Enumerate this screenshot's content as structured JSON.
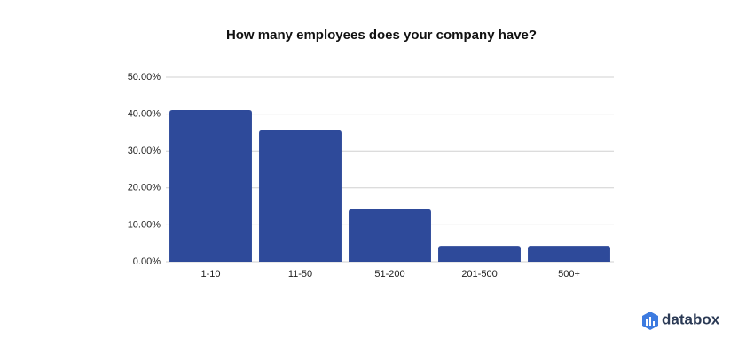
{
  "chart_data": {
    "type": "bar",
    "title": "How many employees does your company have?",
    "categories": [
      "1-10",
      "11-50",
      "51-200",
      "201-500",
      "500+"
    ],
    "values": [
      41.1,
      35.6,
      14.2,
      4.3,
      4.3
    ],
    "color": "#2e4a9a",
    "ylim": [
      0,
      50
    ],
    "yticks": [
      {
        "value": 0,
        "label": "0.00%"
      },
      {
        "value": 10,
        "label": "10.00%"
      },
      {
        "value": 20,
        "label": "20.00%"
      },
      {
        "value": 30,
        "label": "30.00%"
      },
      {
        "value": 40,
        "label": "40.00%"
      },
      {
        "value": 50,
        "label": "50.00%"
      }
    ],
    "grid": true
  },
  "watermark": "databox"
}
